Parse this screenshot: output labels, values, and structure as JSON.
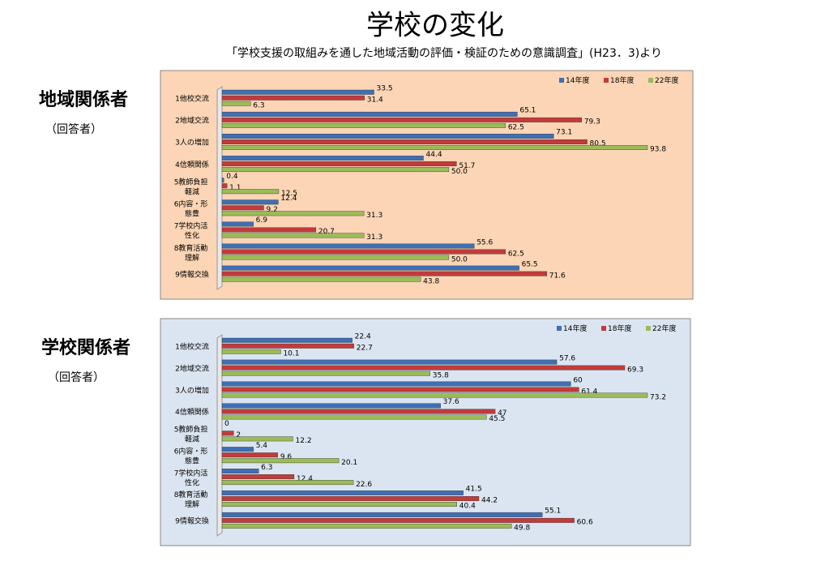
{
  "title": "学校の変化",
  "subtitle": "「学校支援の取組みを通した地域活動の評価・検証のための意識調査」(H23．3)より",
  "chart_data": [
    {
      "type": "bar",
      "orientation": "horizontal",
      "label": "地域関係者",
      "sublabel": "（回答者）",
      "legend": "top-right",
      "background": "#fbd5b5",
      "categories": [
        "1他校交流",
        "2地域交流",
        "3人の増加",
        "4信頼関係",
        "5教師負担\n軽減",
        "6内容・形\n態豊",
        "7学校内活\n性化",
        "8教育活動\n理解",
        "9情報交換"
      ],
      "series": [
        {
          "name": "14年度",
          "color": "#3f6fb5",
          "values": [
            33.5,
            65.1,
            73.1,
            44.4,
            0.4,
            12.4,
            6.9,
            55.6,
            65.5
          ]
        },
        {
          "name": "18年度",
          "color": "#c23b3b",
          "values": [
            31.4,
            79.3,
            80.5,
            51.7,
            1.1,
            9.2,
            20.7,
            62.5,
            71.6
          ]
        },
        {
          "name": "22年度",
          "color": "#9bbb59",
          "values": [
            6.3,
            62.5,
            93.8,
            50,
            12.5,
            31.3,
            31.3,
            50,
            43.8
          ],
          "value_labels": [
            "6.3",
            "62.5",
            "93.8",
            "50.0",
            "12.5",
            "31.3",
            "31.3",
            "50.0",
            "43.8"
          ]
        }
      ]
    },
    {
      "type": "bar",
      "orientation": "horizontal",
      "label": "学校関係者",
      "sublabel": "（回答者）",
      "legend": "top-right",
      "background": "#dbe5f1",
      "categories": [
        "1他校交流",
        "2地域交流",
        "3人の増加",
        "4信頼関係",
        "5教師負担\n軽減",
        "6内容・形\n態豊",
        "7学校内活\n性化",
        "8教育活動\n理解",
        "9情報交換"
      ],
      "series": [
        {
          "name": "14年度",
          "color": "#3f6fb5",
          "values": [
            22.4,
            57.6,
            60,
            37.6,
            0,
            5.4,
            6.3,
            41.5,
            55.1
          ]
        },
        {
          "name": "18年度",
          "color": "#c23b3b",
          "values": [
            22.7,
            69.3,
            61.4,
            47,
            2,
            9.6,
            12.4,
            44.2,
            60.6
          ]
        },
        {
          "name": "22年度",
          "color": "#9bbb59",
          "values": [
            10.1,
            35.8,
            73.2,
            45.5,
            12.2,
            20.1,
            22.6,
            40.4,
            49.8
          ]
        }
      ]
    }
  ]
}
